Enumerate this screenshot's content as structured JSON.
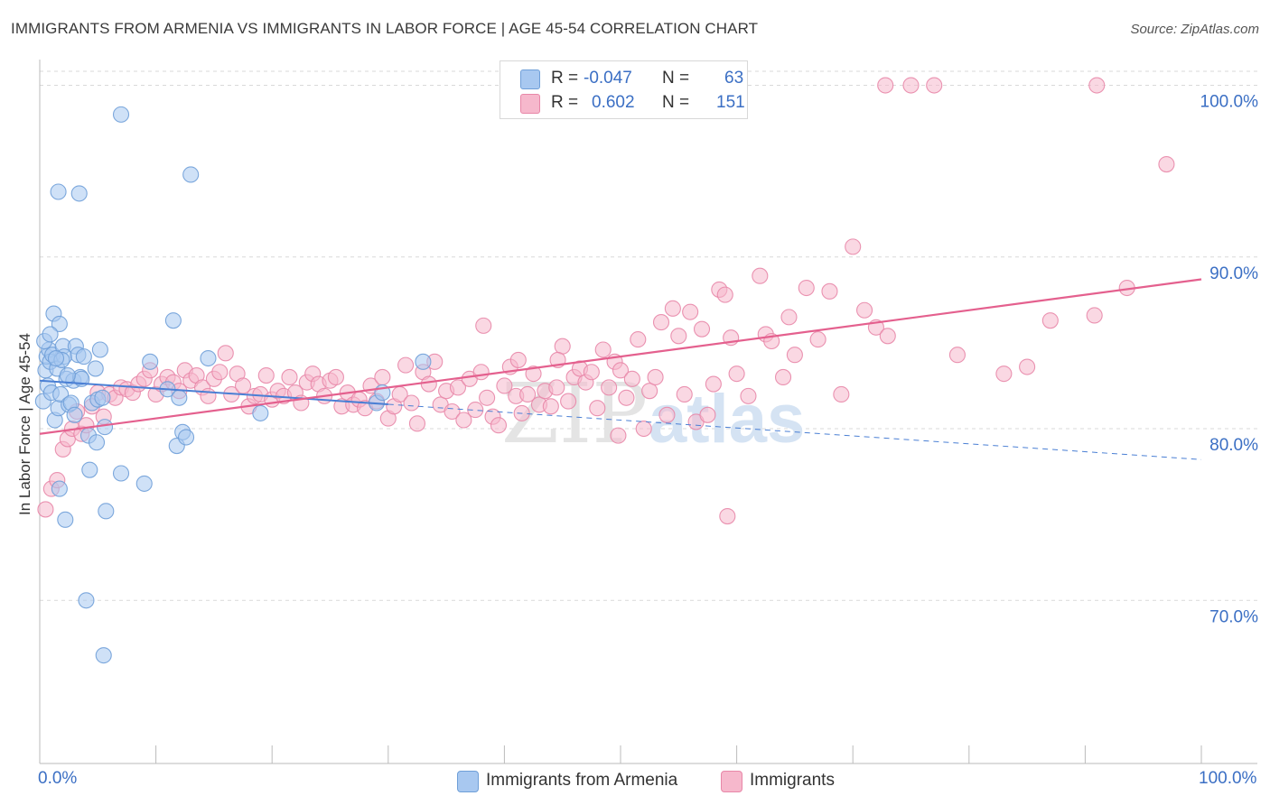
{
  "title": "IMMIGRANTS FROM ARMENIA VS IMMIGRANTS IN LABOR FORCE | AGE 45-54 CORRELATION CHART",
  "source": "Source: ZipAtlas.com",
  "legend_top": [
    {
      "r_label": "R =",
      "r_value": "-0.047",
      "n_label": "N =",
      "n_value": "63",
      "color": "#a8c8f0",
      "border": "#6f9fd8"
    },
    {
      "r_label": "R =",
      "r_value": "0.602",
      "n_label": "N =",
      "n_value": "151",
      "color": "#f6b8cc",
      "border": "#e887a8"
    }
  ],
  "legend_bottom": [
    {
      "label": "Immigrants from Armenia",
      "color": "#a8c8f0",
      "border": "#6f9fd8"
    },
    {
      "label": "Immigrants",
      "color": "#f6b8cc",
      "border": "#e887a8"
    }
  ],
  "x_axis": {
    "min_label": "0.0%",
    "max_label": "100.0%"
  },
  "colors": {
    "blue": "#4a7fd4",
    "blue_fill": "#a8c8f0",
    "pink": "#e4608e",
    "pink_fill": "#f6b8cc",
    "axis_text": "#3b6fc4",
    "grid": "#d9d9d9"
  },
  "chart_data": {
    "type": "scatter",
    "title": "IMMIGRANTS FROM ARMENIA VS IMMIGRANTS IN LABOR FORCE | AGE 45-54 CORRELATION CHART",
    "xlabel": "",
    "ylabel": "In Labor Force | Age 45-54",
    "xlim": [
      0,
      100
    ],
    "ylim": [
      60.5,
      101.5
    ],
    "y_ticks": [
      70,
      80,
      90,
      100
    ],
    "y_tick_labels": [
      "70.0%",
      "80.0%",
      "90.0%",
      "100.0%"
    ],
    "grid": true,
    "legend": "top-center",
    "series": [
      {
        "name": "Immigrants from Armenia",
        "R": -0.047,
        "N": 63,
        "trend": {
          "x0": 0,
          "y0": 82.8,
          "x1": 100,
          "y1": 78.2,
          "solid_until": 30
        },
        "points": [
          [
            0.3,
            81.6
          ],
          [
            0.5,
            83.4
          ],
          [
            0.6,
            84.2
          ],
          [
            0.7,
            82.5
          ],
          [
            0.8,
            84.6
          ],
          [
            0.9,
            83.9
          ],
          [
            1.0,
            82.1
          ],
          [
            1.1,
            84.3
          ],
          [
            1.2,
            86.7
          ],
          [
            1.3,
            80.5
          ],
          [
            1.5,
            83.5
          ],
          [
            1.6,
            81.2
          ],
          [
            1.7,
            86.1
          ],
          [
            1.8,
            82.0
          ],
          [
            2.0,
            84.8
          ],
          [
            2.1,
            84.2
          ],
          [
            1.6,
            93.8
          ],
          [
            1.7,
            76.5
          ],
          [
            2.2,
            74.7
          ],
          [
            2.3,
            82.9
          ],
          [
            2.5,
            81.4
          ],
          [
            2.7,
            81.5
          ],
          [
            2.9,
            82.8
          ],
          [
            3.0,
            80.8
          ],
          [
            3.1,
            84.8
          ],
          [
            3.3,
            84.3
          ],
          [
            3.4,
            93.7
          ],
          [
            3.5,
            83.0
          ],
          [
            3.6,
            82.9
          ],
          [
            3.8,
            84.2
          ],
          [
            4.0,
            70.0
          ],
          [
            4.2,
            79.6
          ],
          [
            4.3,
            77.6
          ],
          [
            4.5,
            81.5
          ],
          [
            4.8,
            83.5
          ],
          [
            4.9,
            79.2
          ],
          [
            5.0,
            81.7
          ],
          [
            5.2,
            84.6
          ],
          [
            5.4,
            81.8
          ],
          [
            5.5,
            66.8
          ],
          [
            5.6,
            80.1
          ],
          [
            5.7,
            75.2
          ],
          [
            7.0,
            77.4
          ],
          [
            7.0,
            98.3
          ],
          [
            9.0,
            76.8
          ],
          [
            9.5,
            83.9
          ],
          [
            11.0,
            82.3
          ],
          [
            11.5,
            86.3
          ],
          [
            11.8,
            79.0
          ],
          [
            12.0,
            81.8
          ],
          [
            12.3,
            79.8
          ],
          [
            12.6,
            79.5
          ],
          [
            13.0,
            94.8
          ],
          [
            14.5,
            84.1
          ],
          [
            19.0,
            80.9
          ],
          [
            29.0,
            81.5
          ],
          [
            29.5,
            82.1
          ],
          [
            33.0,
            83.9
          ],
          [
            0.4,
            85.1
          ],
          [
            1.9,
            84.0
          ],
          [
            2.4,
            83.1
          ],
          [
            0.9,
            85.5
          ],
          [
            1.4,
            84.1
          ]
        ]
      },
      {
        "name": "Immigrants",
        "R": 0.602,
        "N": 151,
        "trend": {
          "x0": 0,
          "y0": 79.7,
          "x1": 100,
          "y1": 88.7
        },
        "points": [
          [
            0.5,
            75.3
          ],
          [
            1.0,
            76.5
          ],
          [
            1.5,
            77.0
          ],
          [
            2.0,
            78.8
          ],
          [
            2.4,
            79.4
          ],
          [
            2.8,
            80.0
          ],
          [
            3.2,
            81.0
          ],
          [
            3.6,
            79.7
          ],
          [
            4.0,
            80.2
          ],
          [
            4.5,
            81.3
          ],
          [
            5.0,
            82.1
          ],
          [
            5.5,
            80.7
          ],
          [
            6.0,
            82.0
          ],
          [
            6.5,
            81.8
          ],
          [
            7.0,
            82.4
          ],
          [
            7.5,
            82.3
          ],
          [
            8.0,
            82.1
          ],
          [
            8.5,
            82.6
          ],
          [
            9.0,
            82.9
          ],
          [
            9.5,
            83.4
          ],
          [
            10.0,
            82.0
          ],
          [
            10.5,
            82.6
          ],
          [
            11.0,
            83.0
          ],
          [
            11.5,
            82.7
          ],
          [
            12.0,
            82.2
          ],
          [
            12.5,
            83.4
          ],
          [
            13.0,
            82.8
          ],
          [
            13.5,
            83.1
          ],
          [
            14.0,
            82.4
          ],
          [
            14.5,
            81.9
          ],
          [
            15.0,
            82.9
          ],
          [
            15.5,
            83.3
          ],
          [
            16.0,
            84.4
          ],
          [
            16.5,
            82.0
          ],
          [
            17.0,
            83.2
          ],
          [
            17.5,
            82.5
          ],
          [
            18.0,
            81.3
          ],
          [
            18.5,
            81.9
          ],
          [
            19.0,
            82.0
          ],
          [
            19.5,
            83.1
          ],
          [
            20.0,
            81.7
          ],
          [
            20.5,
            82.2
          ],
          [
            21.0,
            81.9
          ],
          [
            21.5,
            83.0
          ],
          [
            22.0,
            82.1
          ],
          [
            22.5,
            81.5
          ],
          [
            23.0,
            82.7
          ],
          [
            23.5,
            83.2
          ],
          [
            24.0,
            82.6
          ],
          [
            24.5,
            81.9
          ],
          [
            25.0,
            82.8
          ],
          [
            25.5,
            83.0
          ],
          [
            26.0,
            81.3
          ],
          [
            26.5,
            82.1
          ],
          [
            27.0,
            81.4
          ],
          [
            27.5,
            81.7
          ],
          [
            28.0,
            81.2
          ],
          [
            28.5,
            82.5
          ],
          [
            29.0,
            81.6
          ],
          [
            29.5,
            83.0
          ],
          [
            30.0,
            80.6
          ],
          [
            30.5,
            81.3
          ],
          [
            31.0,
            82.0
          ],
          [
            31.5,
            83.7
          ],
          [
            32.0,
            81.5
          ],
          [
            32.5,
            80.3
          ],
          [
            33.0,
            83.3
          ],
          [
            33.5,
            82.6
          ],
          [
            34.0,
            83.9
          ],
          [
            34.5,
            81.4
          ],
          [
            35.0,
            82.2
          ],
          [
            35.5,
            81.0
          ],
          [
            36.0,
            82.4
          ],
          [
            36.5,
            80.5
          ],
          [
            37.0,
            82.9
          ],
          [
            37.5,
            81.1
          ],
          [
            38.0,
            83.3
          ],
          [
            38.5,
            81.8
          ],
          [
            39.0,
            80.7
          ],
          [
            39.5,
            80.2
          ],
          [
            40.0,
            82.5
          ],
          [
            40.5,
            83.6
          ],
          [
            41.0,
            81.9
          ],
          [
            41.5,
            80.9
          ],
          [
            42.0,
            82.0
          ],
          [
            42.5,
            83.2
          ],
          [
            43.0,
            81.4
          ],
          [
            43.5,
            82.2
          ],
          [
            44.0,
            81.3
          ],
          [
            44.5,
            82.4
          ],
          [
            45.0,
            84.8
          ],
          [
            45.5,
            81.6
          ],
          [
            46.0,
            83.0
          ],
          [
            46.5,
            83.5
          ],
          [
            47.0,
            82.7
          ],
          [
            47.5,
            83.3
          ],
          [
            48.0,
            81.2
          ],
          [
            48.5,
            84.6
          ],
          [
            49.0,
            82.4
          ],
          [
            49.5,
            83.9
          ],
          [
            50.0,
            83.4
          ],
          [
            50.5,
            81.8
          ],
          [
            51.0,
            82.9
          ],
          [
            51.5,
            85.2
          ],
          [
            52.0,
            80.0
          ],
          [
            52.5,
            82.2
          ],
          [
            53.0,
            83.0
          ],
          [
            53.5,
            86.2
          ],
          [
            54.0,
            80.8
          ],
          [
            54.5,
            87.0
          ],
          [
            55.0,
            85.4
          ],
          [
            55.5,
            82.0
          ],
          [
            56.0,
            86.8
          ],
          [
            56.5,
            80.4
          ],
          [
            57.0,
            85.8
          ],
          [
            57.5,
            80.8
          ],
          [
            58.0,
            82.6
          ],
          [
            58.5,
            88.1
          ],
          [
            59.0,
            87.8
          ],
          [
            59.5,
            85.3
          ],
          [
            60.0,
            83.2
          ],
          [
            61.0,
            81.9
          ],
          [
            62.0,
            88.9
          ],
          [
            62.5,
            85.5
          ],
          [
            63.0,
            85.1
          ],
          [
            64.0,
            83.0
          ],
          [
            64.5,
            86.5
          ],
          [
            65.0,
            84.3
          ],
          [
            66.0,
            88.2
          ],
          [
            67.0,
            85.2
          ],
          [
            68.0,
            88.0
          ],
          [
            69.0,
            82.0
          ],
          [
            70.0,
            90.6
          ],
          [
            71.0,
            86.9
          ],
          [
            72.0,
            85.9
          ],
          [
            73.0,
            85.4
          ],
          [
            38.2,
            86.0
          ],
          [
            41.2,
            84.0
          ],
          [
            44.6,
            84.0
          ],
          [
            49.8,
            79.6
          ],
          [
            59.2,
            74.9
          ],
          [
            72.8,
            100.0
          ],
          [
            77.0,
            100.0
          ],
          [
            91.0,
            100.0
          ],
          [
            97.0,
            95.4
          ],
          [
            75.0,
            100.0
          ],
          [
            87.0,
            86.3
          ],
          [
            90.8,
            86.6
          ],
          [
            79.0,
            84.3
          ],
          [
            83.0,
            83.2
          ],
          [
            85.0,
            83.6
          ],
          [
            93.6,
            88.2
          ]
        ]
      }
    ]
  }
}
